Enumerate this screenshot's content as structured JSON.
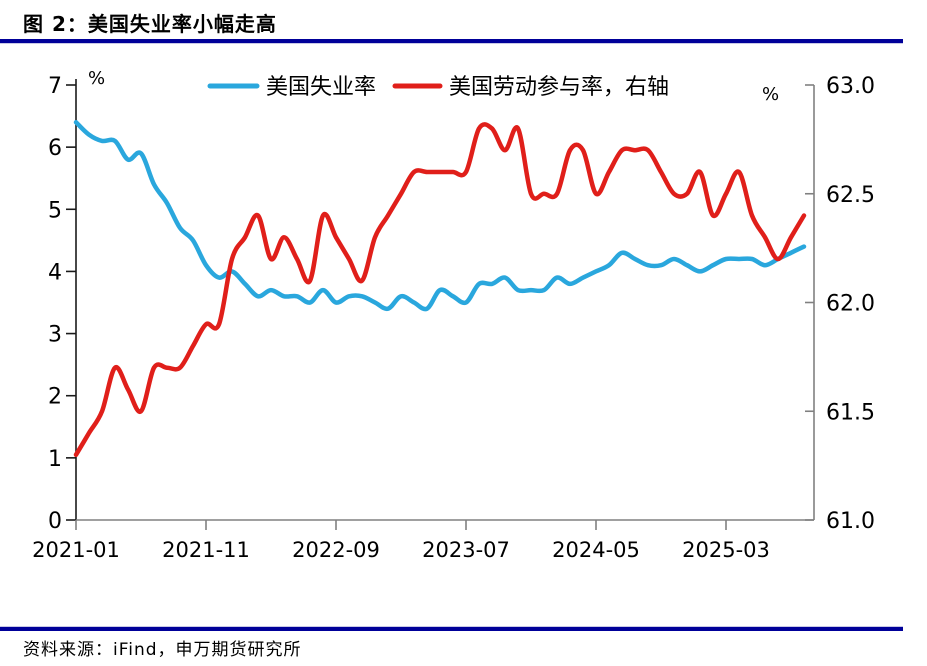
{
  "header": {
    "title": "图 2：美国失业率小幅走高"
  },
  "footer": {
    "source": "资料来源：iFind，申万期货研究所"
  },
  "colors": {
    "divider": "#000099",
    "left_axis": "#1a1a1a",
    "right_axis": "#808080",
    "text": "#000000"
  },
  "chart_data": {
    "type": "line",
    "title": "",
    "legend_position": "top-center",
    "grid": false,
    "x": [
      "2021-01",
      "2021-02",
      "2021-03",
      "2021-04",
      "2021-05",
      "2021-06",
      "2021-07",
      "2021-08",
      "2021-09",
      "2021-10",
      "2021-11",
      "2021-12",
      "2022-01",
      "2022-02",
      "2022-03",
      "2022-04",
      "2022-05",
      "2022-06",
      "2022-07",
      "2022-08",
      "2022-09",
      "2022-10",
      "2022-11",
      "2022-12",
      "2023-01",
      "2023-02",
      "2023-03",
      "2023-04",
      "2023-05",
      "2023-06",
      "2023-07",
      "2023-08",
      "2023-09",
      "2023-10",
      "2023-11",
      "2023-12",
      "2024-01",
      "2024-02",
      "2024-03",
      "2024-04",
      "2024-05",
      "2024-06",
      "2024-07",
      "2024-08",
      "2024-09",
      "2024-10",
      "2024-11",
      "2024-12",
      "2025-01",
      "2025-02",
      "2025-03",
      "2025-04",
      "2025-05",
      "2025-06",
      "2025-07",
      "2025-08",
      "2025-09"
    ],
    "series": [
      {
        "name": "美国失业率",
        "axis": "left",
        "color": "#2aa7dd",
        "values": [
          6.4,
          6.2,
          6.1,
          6.1,
          5.8,
          5.9,
          5.4,
          5.1,
          4.7,
          4.5,
          4.1,
          3.9,
          4.0,
          3.8,
          3.6,
          3.7,
          3.6,
          3.6,
          3.5,
          3.7,
          3.5,
          3.6,
          3.6,
          3.5,
          3.4,
          3.6,
          3.5,
          3.4,
          3.7,
          3.6,
          3.5,
          3.8,
          3.8,
          3.9,
          3.7,
          3.7,
          3.7,
          3.9,
          3.8,
          3.9,
          4.0,
          4.1,
          4.3,
          4.2,
          4.1,
          4.1,
          4.2,
          4.1,
          4.0,
          4.1,
          4.2,
          4.2,
          4.2,
          4.1,
          4.2,
          4.3,
          4.4
        ]
      },
      {
        "name": "美国劳动参与率，右轴",
        "axis": "right",
        "color": "#e01f1a",
        "values": [
          61.3,
          61.4,
          61.5,
          61.7,
          61.6,
          61.5,
          61.7,
          61.7,
          61.7,
          61.8,
          61.9,
          61.9,
          62.2,
          62.3,
          62.4,
          62.2,
          62.3,
          62.2,
          62.1,
          62.4,
          62.3,
          62.2,
          62.1,
          62.3,
          62.4,
          62.5,
          62.6,
          62.6,
          62.6,
          62.6,
          62.6,
          62.8,
          62.8,
          62.7,
          62.8,
          62.5,
          62.5,
          62.5,
          62.7,
          62.7,
          62.5,
          62.6,
          62.7,
          62.7,
          62.7,
          62.6,
          62.5,
          62.5,
          62.6,
          62.4,
          62.5,
          62.6,
          62.4,
          62.3,
          62.2,
          62.3,
          62.4
        ]
      }
    ],
    "left_axis": {
      "unit": "%",
      "min": 0,
      "max": 7,
      "ticks": [
        0,
        1,
        2,
        3,
        4,
        5,
        6,
        7
      ]
    },
    "right_axis": {
      "unit": "%",
      "min": 61,
      "max": 63,
      "ticks": [
        "61.0",
        "61.5",
        "62.0",
        "62.5",
        "63.0"
      ]
    },
    "x_tick_labels": [
      "2021-01",
      "2021-11",
      "2022-09",
      "2023-07",
      "2024-05",
      "2025-03"
    ],
    "x_tick_step_months": 10
  }
}
